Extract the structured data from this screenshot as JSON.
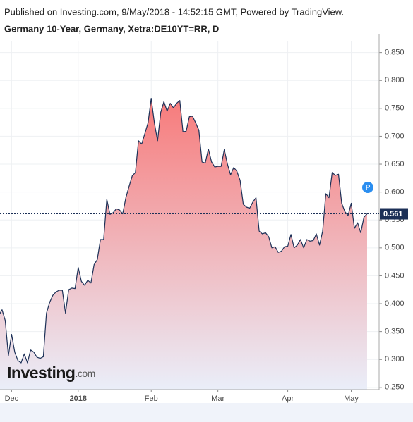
{
  "header": {
    "published": "Published on Investing.com, 9/May/2018 - 14:52:15 GMT, Powered by TradingView.",
    "symbol": "Germany 10-Year, Germany, Xetra:DE10YT=RR, D"
  },
  "chart_data": {
    "type": "area",
    "color": "#1c3057",
    "fill_top": "#f77b7b",
    "fill_bottom": "#eaeef9",
    "categories": [
      null,
      null,
      null,
      null,
      "Dec",
      null,
      null,
      null,
      null,
      null,
      null,
      null,
      null,
      null,
      null,
      null,
      null,
      null,
      null,
      null,
      null,
      null,
      null,
      null,
      null,
      "2018",
      null,
      null,
      null,
      null,
      null,
      null,
      null,
      null,
      null,
      null,
      null,
      null,
      null,
      null,
      null,
      null,
      null,
      null,
      null,
      null,
      null,
      null,
      "Feb",
      null,
      null,
      null,
      null,
      null,
      null,
      null,
      null,
      null,
      null,
      null,
      null,
      null,
      null,
      null,
      null,
      null,
      null,
      null,
      null,
      "Mar",
      null,
      null,
      null,
      null,
      null,
      null,
      null,
      null,
      null,
      null,
      null,
      null,
      null,
      null,
      null,
      null,
      null,
      null,
      null,
      null,
      null,
      "Apr",
      null,
      null,
      null,
      null,
      null,
      null,
      null,
      null,
      null,
      null,
      null,
      null,
      null,
      null,
      null,
      null,
      null,
      null,
      null,
      "May",
      null,
      null,
      null,
      null,
      null
    ],
    "values": [
      0.379,
      0.389,
      0.37,
      0.307,
      0.345,
      0.313,
      0.298,
      0.294,
      0.31,
      0.294,
      0.317,
      0.313,
      0.304,
      0.302,
      0.305,
      0.383,
      0.402,
      0.415,
      0.421,
      0.424,
      0.424,
      0.383,
      0.425,
      0.428,
      0.427,
      0.465,
      0.44,
      0.433,
      0.442,
      0.437,
      0.47,
      0.479,
      0.515,
      0.515,
      0.587,
      0.56,
      0.563,
      0.57,
      0.568,
      0.561,
      0.59,
      0.61,
      0.629,
      0.635,
      0.692,
      0.686,
      0.705,
      0.724,
      0.768,
      0.724,
      0.692,
      0.743,
      0.762,
      0.745,
      0.759,
      0.751,
      0.759,
      0.764,
      0.708,
      0.709,
      0.735,
      0.736,
      0.724,
      0.711,
      0.654,
      0.652,
      0.677,
      0.654,
      0.645,
      0.646,
      0.646,
      0.676,
      0.65,
      0.631,
      0.644,
      0.637,
      0.621,
      0.578,
      0.573,
      0.571,
      0.582,
      0.59,
      0.53,
      0.525,
      0.527,
      0.52,
      0.5,
      0.502,
      0.492,
      0.494,
      0.502,
      0.503,
      0.524,
      0.5,
      0.505,
      0.515,
      0.5,
      0.515,
      0.512,
      0.513,
      0.525,
      0.505,
      0.53,
      0.597,
      0.59,
      0.635,
      0.63,
      0.632,
      0.58,
      0.565,
      0.558,
      0.58,
      0.535,
      0.545,
      0.527,
      0.555,
      0.561
    ],
    "last_value": 0.561,
    "marker": "P",
    "ylim": [
      0.246,
      0.871
    ],
    "yticks": [
      {
        "value": 0.25,
        "label": "0.250"
      },
      {
        "value": 0.3,
        "label": "0.300"
      },
      {
        "value": 0.35,
        "label": "0.350"
      },
      {
        "value": 0.4,
        "label": "0.400"
      },
      {
        "value": 0.45,
        "label": "0.450"
      },
      {
        "value": 0.5,
        "label": "0.500"
      },
      {
        "value": 0.55,
        "label": "0.550"
      },
      {
        "value": 0.6,
        "label": "0.600"
      },
      {
        "value": 0.65,
        "label": "0.650"
      },
      {
        "value": 0.7,
        "label": "0.700"
      },
      {
        "value": 0.75,
        "label": "0.750"
      },
      {
        "value": 0.8,
        "label": "0.800"
      },
      {
        "value": 0.85,
        "label": "0.850"
      }
    ],
    "grid": true,
    "logo": "Investing",
    "logo_suffix": ".com"
  }
}
